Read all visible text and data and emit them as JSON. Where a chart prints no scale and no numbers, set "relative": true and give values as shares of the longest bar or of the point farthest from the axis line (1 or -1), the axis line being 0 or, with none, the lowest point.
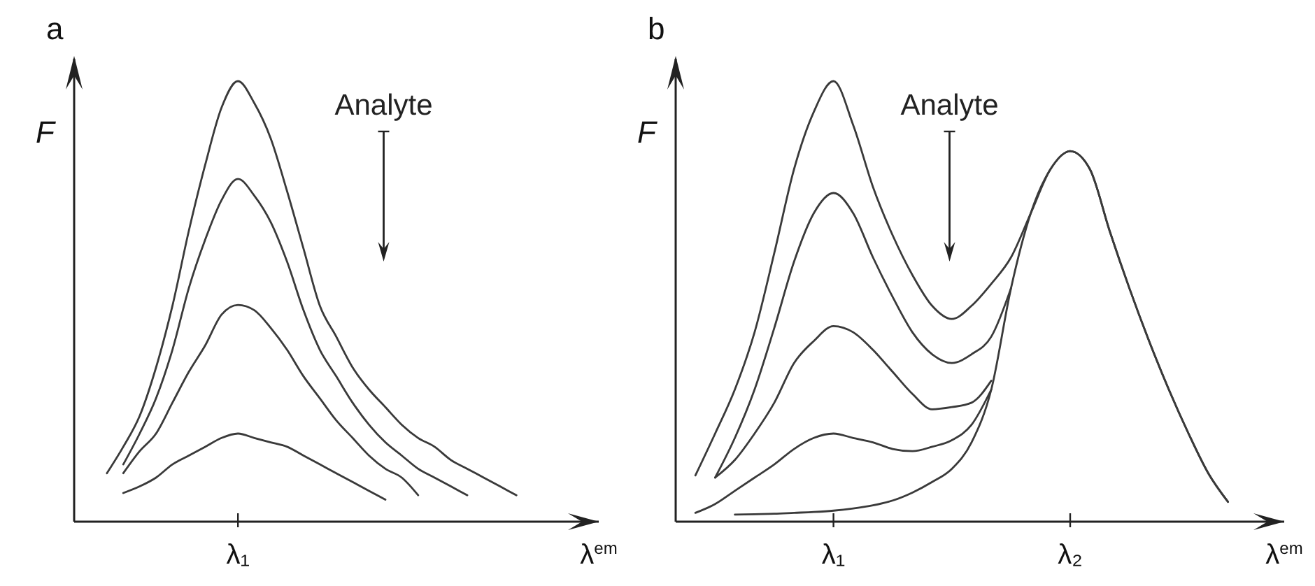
{
  "chart_data": [
    {
      "type": "line",
      "title": "a",
      "ylabel": "F",
      "xlabel": "λ$^{em}$",
      "relative": true,
      "annotations": [
        "Analyte",
        "λ₁"
      ],
      "categories": [
        null,
        null,
        null,
        null,
        null,
        null,
        null,
        null,
        null,
        null,
        null,
        null,
        null,
        null,
        null,
        null,
        null,
        null,
        null,
        null,
        null,
        null,
        null,
        null,
        null,
        null,
        null,
        null,
        null,
        null,
        null,
        null
      ],
      "series": [
        {
          "color": "#3a3a3a",
          "values": [
            null,
            null,
            0.11,
            0.17,
            0.24,
            0.35,
            0.49,
            0.66,
            0.81,
            0.94,
            1.0,
            0.95,
            0.87,
            0.75,
            0.62,
            0.49,
            0.42,
            0.35,
            0.3,
            0.26,
            0.22,
            0.19,
            0.17,
            0.14,
            0.12,
            0.1,
            0.08,
            0.06,
            null,
            null,
            null,
            null
          ]
        },
        {
          "color": "#3a3a3a",
          "values": [
            null,
            null,
            null,
            0.13,
            0.2,
            0.28,
            0.39,
            0.53,
            0.64,
            0.73,
            0.778,
            0.74,
            0.68,
            0.59,
            0.48,
            0.39,
            0.33,
            0.27,
            0.22,
            0.18,
            0.15,
            0.12,
            0.1,
            0.08,
            0.06,
            null,
            null,
            null,
            null,
            null,
            null,
            null
          ]
        },
        {
          "color": "#3a3a3a",
          "values": [
            null,
            null,
            null,
            0.11,
            0.16,
            0.2,
            0.27,
            0.34,
            0.4,
            0.47,
            0.492,
            0.48,
            0.44,
            0.39,
            0.33,
            0.28,
            0.23,
            0.19,
            0.15,
            0.12,
            0.1,
            0.06,
            null,
            null,
            null,
            null,
            null,
            null,
            null,
            null,
            null,
            null
          ]
        },
        {
          "color": "#3a3a3a",
          "values": [
            null,
            null,
            null,
            0.065,
            0.08,
            0.1,
            0.13,
            0.15,
            0.17,
            0.19,
            0.2,
            0.19,
            0.18,
            0.17,
            0.15,
            0.13,
            0.11,
            0.09,
            0.07,
            0.05,
            null,
            null,
            null,
            null,
            null,
            null,
            null,
            null,
            null,
            null,
            null,
            null
          ]
        }
      ]
    },
    {
      "type": "line",
      "title": "b",
      "ylabel": "F",
      "xlabel": "λ$^{em}$",
      "relative": true,
      "annotations": [
        "Analyte"
      ],
      "categories": [
        null,
        null,
        null,
        null,
        null,
        null,
        null,
        null,
        "λ₁",
        null,
        null,
        null,
        null,
        null,
        null,
        null,
        null,
        null,
        null,
        null,
        "λ₂",
        null,
        null,
        null,
        null,
        null,
        null,
        null,
        null,
        null,
        null
      ],
      "series": [
        {
          "color": "#3a3a3a",
          "values": [
            null,
            0.105,
            0.2,
            0.3,
            0.43,
            0.61,
            0.8,
            0.93,
            1.0,
            0.9,
            0.76,
            0.65,
            0.56,
            0.49,
            0.46,
            0.49,
            0.54,
            0.6,
            0.7,
            0.8,
            0.841,
            0.8,
            0.66,
            0.53,
            0.41,
            0.3,
            0.2,
            0.11,
            0.045,
            null,
            null
          ]
        },
        {
          "color": "#3a3a3a",
          "values": [
            null,
            null,
            0.1,
            0.19,
            0.3,
            0.44,
            0.59,
            0.7,
            0.746,
            0.7,
            0.6,
            0.51,
            0.43,
            0.38,
            0.36,
            0.38,
            0.42,
            0.53,
            null,
            null,
            null,
            null,
            null,
            null,
            null,
            null,
            null,
            null,
            null,
            null,
            null
          ]
        },
        {
          "color": "#3a3a3a",
          "values": [
            null,
            null,
            0.1,
            0.14,
            0.2,
            0.27,
            0.36,
            0.41,
            0.444,
            0.43,
            0.39,
            0.34,
            0.29,
            0.255,
            0.26,
            0.27,
            0.32,
            null,
            null,
            null,
            null,
            null,
            null,
            null,
            null,
            null,
            null,
            null,
            null,
            null,
            null
          ]
        },
        {
          "color": "#3a3a3a",
          "values": [
            null,
            0.02,
            0.04,
            0.07,
            0.1,
            0.13,
            0.165,
            0.19,
            0.2,
            0.19,
            0.18,
            0.165,
            0.16,
            0.17,
            0.185,
            0.22,
            0.3,
            null,
            null,
            null,
            null,
            null,
            null,
            null,
            null,
            null,
            null,
            null,
            null,
            null,
            null
          ]
        },
        {
          "color": "#3a3a3a",
          "values": [
            null,
            null,
            null,
            0.016,
            0.017,
            0.018,
            0.02,
            0.022,
            0.025,
            0.03,
            0.037,
            0.048,
            0.066,
            0.09,
            0.12,
            0.18,
            0.3,
            0.53,
            0.7,
            0.8,
            0.841,
            0.8,
            0.66,
            0.53,
            0.41,
            0.3,
            0.2,
            0.11,
            0.045,
            null,
            null
          ]
        }
      ]
    }
  ]
}
